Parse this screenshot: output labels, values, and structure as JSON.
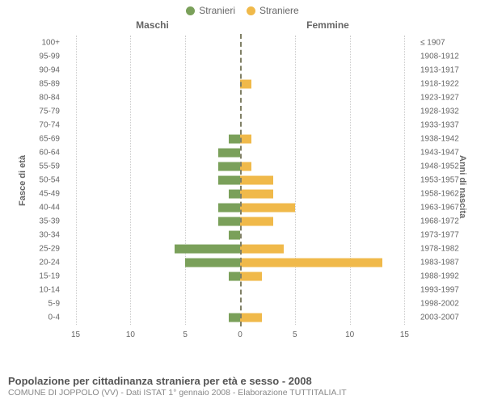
{
  "legend": {
    "left": {
      "label": "Stranieri",
      "color": "#7aa05a"
    },
    "right": {
      "label": "Straniere",
      "color": "#f0b94a"
    }
  },
  "chart": {
    "type": "population-pyramid",
    "header_left": "Maschi",
    "header_right": "Femmine",
    "y_left_title": "Fasce di età",
    "y_right_title": "Anni di nascita",
    "xlim": 16,
    "xticks": [
      15,
      10,
      5,
      0,
      5,
      10,
      15
    ],
    "xtick_positions_pct": [
      3.125,
      18.75,
      34.375,
      50,
      65.625,
      81.25,
      96.875
    ],
    "grid_positions_pct": [
      3.125,
      18.75,
      34.375,
      65.625,
      81.25,
      96.875
    ],
    "bar_left_color": "#7aa05a",
    "bar_right_color": "#f0b94a",
    "grid_color": "#cccccc",
    "centerline_color": "#808066",
    "rows": [
      {
        "age": "100+",
        "m": 0,
        "f": 0,
        "birth": "≤ 1907"
      },
      {
        "age": "95-99",
        "m": 0,
        "f": 0,
        "birth": "1908-1912"
      },
      {
        "age": "90-94",
        "m": 0,
        "f": 0,
        "birth": "1913-1917"
      },
      {
        "age": "85-89",
        "m": 0,
        "f": 1,
        "birth": "1918-1922"
      },
      {
        "age": "80-84",
        "m": 0,
        "f": 0,
        "birth": "1923-1927"
      },
      {
        "age": "75-79",
        "m": 0,
        "f": 0,
        "birth": "1928-1932"
      },
      {
        "age": "70-74",
        "m": 0,
        "f": 0,
        "birth": "1933-1937"
      },
      {
        "age": "65-69",
        "m": 1,
        "f": 1,
        "birth": "1938-1942"
      },
      {
        "age": "60-64",
        "m": 2,
        "f": 0,
        "birth": "1943-1947"
      },
      {
        "age": "55-59",
        "m": 2,
        "f": 1,
        "birth": "1948-1952"
      },
      {
        "age": "50-54",
        "m": 2,
        "f": 3,
        "birth": "1953-1957"
      },
      {
        "age": "45-49",
        "m": 1,
        "f": 3,
        "birth": "1958-1962"
      },
      {
        "age": "40-44",
        "m": 2,
        "f": 5,
        "birth": "1963-1967"
      },
      {
        "age": "35-39",
        "m": 2,
        "f": 3,
        "birth": "1968-1972"
      },
      {
        "age": "30-34",
        "m": 1,
        "f": 0,
        "birth": "1973-1977"
      },
      {
        "age": "25-29",
        "m": 6,
        "f": 4,
        "birth": "1978-1982"
      },
      {
        "age": "20-24",
        "m": 5,
        "f": 13,
        "birth": "1983-1987"
      },
      {
        "age": "15-19",
        "m": 1,
        "f": 2,
        "birth": "1988-1992"
      },
      {
        "age": "10-14",
        "m": 0,
        "f": 0,
        "birth": "1993-1997"
      },
      {
        "age": "5-9",
        "m": 0,
        "f": 0,
        "birth": "1998-2002"
      },
      {
        "age": "0-4",
        "m": 1,
        "f": 2,
        "birth": "2003-2007"
      }
    ]
  },
  "footer": {
    "title": "Popolazione per cittadinanza straniera per età e sesso - 2008",
    "subtitle": "COMUNE DI JOPPOLO (VV) - Dati ISTAT 1° gennaio 2008 - Elaborazione TUTTITALIA.IT"
  }
}
